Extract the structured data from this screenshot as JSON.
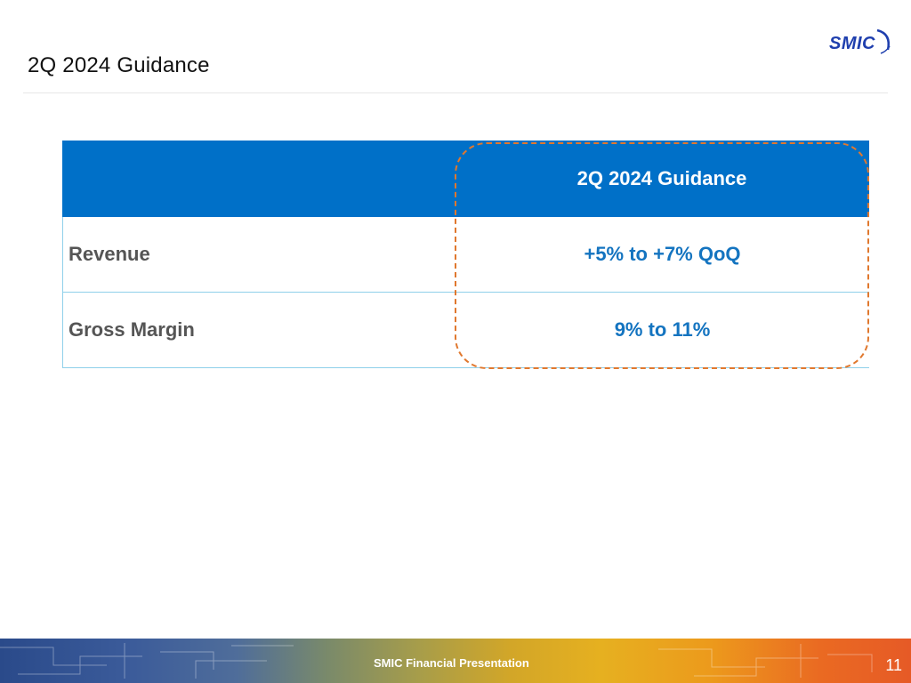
{
  "slide": {
    "title": "2Q 2024 Guidance",
    "logo_text": "SMIC",
    "logo_color": "#1f3fae"
  },
  "table": {
    "header": {
      "label": "",
      "value": "2Q 2024 Guidance"
    },
    "rows": [
      {
        "label": "Revenue",
        "value": "+5% to +7% QoQ"
      },
      {
        "label": "Gross Margin",
        "value": "9% to 11%"
      }
    ],
    "header_color": "#0070c8",
    "value_color": "#1474c0",
    "highlight_color": "#e0782e"
  },
  "footer": {
    "text": "SMIC Financial Presentation",
    "page_number": "11"
  }
}
